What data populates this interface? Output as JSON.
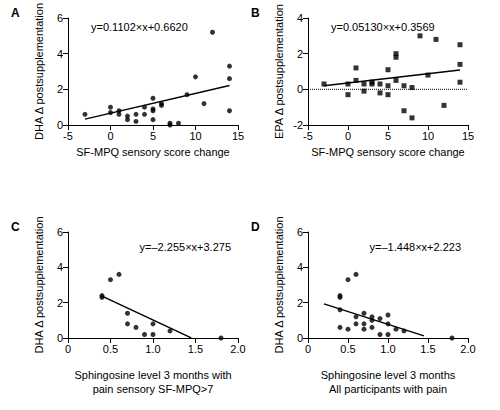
{
  "chart_data": [
    {
      "type": "scatter",
      "title": "A",
      "annotation": "y=0.1102×x+0.6620",
      "xlabel": "SF-MPQ sensory score change",
      "ylabel": "DHA Δ postsupplementation",
      "xlim": [
        -5,
        15
      ],
      "xticks": [
        -5,
        0,
        5,
        10,
        15
      ],
      "ylim": [
        0,
        6
      ],
      "yticks": [
        0,
        2,
        4,
        6
      ],
      "marker": "circle",
      "color": "#000000",
      "x": [
        -3,
        0,
        0,
        1,
        1,
        2,
        2,
        3,
        3,
        4,
        4,
        5,
        5,
        5,
        5,
        6,
        6,
        7,
        7,
        8,
        9,
        10,
        11,
        12,
        14,
        14,
        14
      ],
      "values": [
        0.6,
        0.7,
        1.0,
        0.8,
        0.6,
        0.5,
        0.3,
        0.6,
        0.2,
        0.6,
        1.0,
        1.5,
        0.9,
        0.8,
        0.3,
        1.1,
        1.2,
        0.1,
        0.0,
        0.1,
        1.7,
        2.7,
        1.2,
        5.2,
        3.3,
        2.6,
        0.8
      ],
      "fit": {
        "x": [
          -3,
          14
        ],
        "values": [
          0.33,
          2.21
        ]
      }
    },
    {
      "type": "scatter",
      "title": "B",
      "annotation": "y=0.05130×x+0.3569",
      "xlabel": "SF-MPQ sensory score change",
      "ylabel": "EPA Δ postsupplementation",
      "xlim": [
        -5,
        15
      ],
      "xticks": [
        -5,
        0,
        5,
        10,
        15
      ],
      "ylim": [
        -2,
        4
      ],
      "yticks": [
        -2,
        0,
        2,
        4
      ],
      "marker": "square",
      "color": "#000000",
      "x": [
        -3,
        0,
        0,
        1,
        1,
        2,
        2,
        3,
        3,
        4,
        4,
        5,
        5,
        5,
        6,
        6,
        6,
        7,
        7,
        8,
        8,
        9,
        10,
        11,
        12,
        14,
        14,
        14
      ],
      "values": [
        0.3,
        0.3,
        -0.3,
        1.2,
        0.5,
        0.3,
        -0.1,
        0.4,
        0.3,
        0.3,
        -0.2,
        1.1,
        0.2,
        -0.3,
        2.0,
        1.8,
        0.5,
        0.2,
        -1.2,
        -1.6,
        0.1,
        3.0,
        0.8,
        2.8,
        -0.9,
        2.5,
        1.4,
        0.4
      ],
      "fit": {
        "x": [
          -3,
          14
        ],
        "values": [
          0.2,
          1.08
        ]
      },
      "reference": {
        "x": [
          -5,
          15
        ],
        "values": [
          0,
          0
        ],
        "line_style": "dotted"
      }
    },
    {
      "type": "scatter",
      "title": "C",
      "annotation": "y=–2.255×x+3.275",
      "xlabel": "Sphingosine level 3 months with\npain sensory SF-MPQ>7",
      "ylabel": "DHA Δ postsupplementation",
      "xlim": [
        0,
        2
      ],
      "xticks": [
        0,
        0.5,
        {
          "value": 1,
          "label": "1.0"
        },
        1.5,
        {
          "value": 2,
          "label": "2.0"
        }
      ],
      "ylim": [
        0,
        6
      ],
      "yticks": [
        0,
        2,
        4,
        6
      ],
      "marker": "circle",
      "color": "#000000",
      "x": [
        0.4,
        0.4,
        0.5,
        0.6,
        0.7,
        0.7,
        0.8,
        0.9,
        1.0,
        1.0,
        1.2,
        1.8
      ],
      "values": [
        2.4,
        2.3,
        3.3,
        3.6,
        1.4,
        0.8,
        0.6,
        0.2,
        0.8,
        0.2,
        0.4,
        0.0
      ],
      "fit": {
        "x": [
          0.4,
          1.45
        ],
        "values": [
          2.37,
          0.01
        ]
      }
    },
    {
      "type": "scatter",
      "title": "D",
      "annotation": "y=–1.448×x+2.223",
      "xlabel": "Sphingosine level 3 months\nAll participants with pain",
      "ylabel": "DHA Δ postsupplementation",
      "xlim": [
        0,
        2
      ],
      "xticks": [
        0,
        0.5,
        {
          "value": 1,
          "label": "1.0"
        },
        1.5,
        {
          "value": 2,
          "label": "2.0"
        }
      ],
      "ylim": [
        0,
        6
      ],
      "yticks": [
        0,
        2,
        4,
        6
      ],
      "marker": "circle",
      "color": "#000000",
      "x": [
        0.4,
        0.4,
        0.4,
        0.4,
        0.5,
        0.5,
        0.6,
        0.6,
        0.6,
        0.7,
        0.7,
        0.7,
        0.8,
        0.8,
        0.8,
        0.9,
        0.9,
        1.0,
        1.0,
        1.0,
        1.1,
        1.2,
        1.8
      ],
      "values": [
        2.4,
        2.3,
        1.6,
        0.6,
        3.3,
        0.5,
        3.6,
        1.2,
        0.8,
        1.4,
        0.8,
        0.5,
        1.2,
        1.0,
        0.6,
        1.1,
        0.2,
        0.8,
        1.3,
        0.2,
        0.5,
        0.4,
        0.0
      ],
      "fit": {
        "x": [
          0.2,
          1.45
        ],
        "values": [
          1.93,
          0.12
        ]
      }
    }
  ]
}
